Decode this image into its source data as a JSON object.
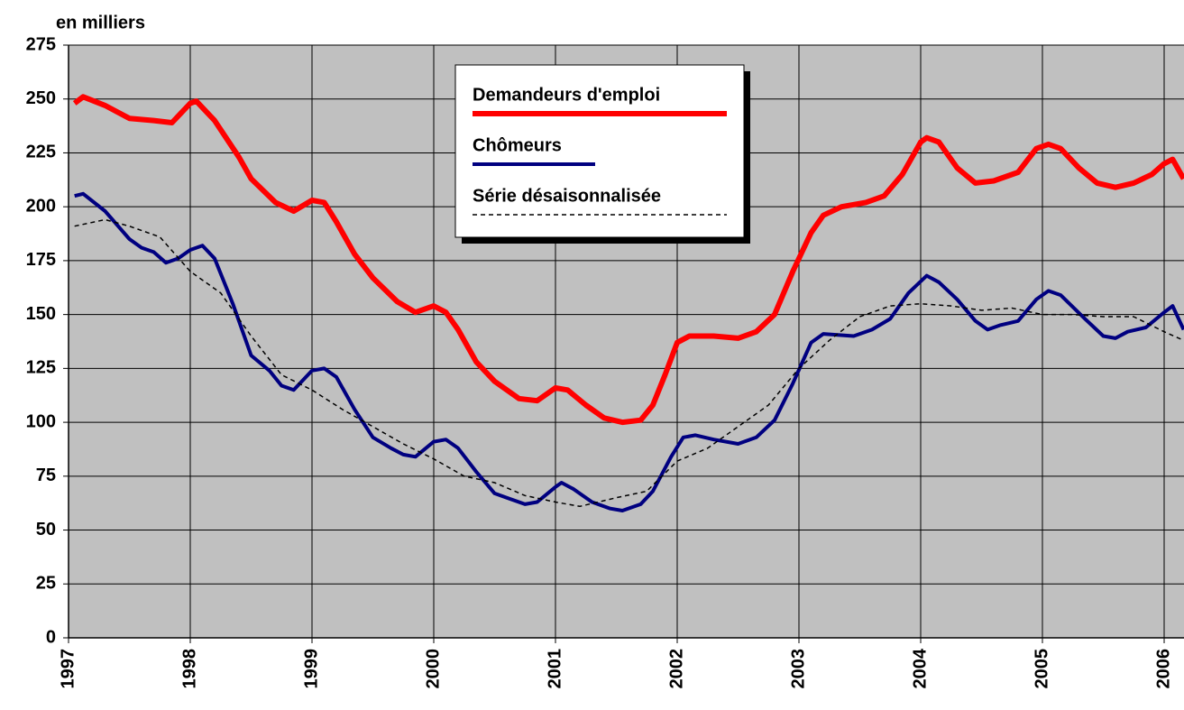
{
  "chart_data": {
    "type": "line",
    "ylabel": "en milliers",
    "xlim": [
      1997,
      2006.163
    ],
    "xticks": [
      1997,
      1998,
      1999,
      2000,
      2001,
      2002,
      2003,
      2004,
      2005,
      2006
    ],
    "ylim": [
      0,
      275
    ],
    "yticks": [
      0,
      25,
      50,
      75,
      100,
      125,
      150,
      175,
      200,
      225,
      250,
      275
    ],
    "grid": true,
    "legend": "top-center",
    "series": [
      {
        "name": "Demandeurs d'emploi",
        "color": "#ff0000",
        "dash": false,
        "width": 6,
        "x": [
          1997.05,
          1997.12,
          1997.3,
          1997.5,
          1997.7,
          1997.85,
          1998.0,
          1998.05,
          1998.2,
          1998.4,
          1998.5,
          1998.7,
          1998.85,
          1999.0,
          1999.1,
          1999.2,
          1999.35,
          1999.5,
          1999.7,
          1999.85,
          2000.0,
          2000.1,
          2000.2,
          2000.35,
          2000.5,
          2000.7,
          2000.85,
          2001.0,
          2001.1,
          2001.25,
          2001.4,
          2001.55,
          2001.7,
          2001.8,
          2001.9,
          2002.0,
          2002.1,
          2002.3,
          2002.5,
          2002.65,
          2002.8,
          2002.95,
          2003.1,
          2003.2,
          2003.35,
          2003.55,
          2003.7,
          2003.85,
          2004.0,
          2004.05,
          2004.15,
          2004.3,
          2004.45,
          2004.6,
          2004.8,
          2004.95,
          2005.05,
          2005.15,
          2005.3,
          2005.45,
          2005.6,
          2005.75,
          2005.9,
          2006.0,
          2006.07,
          2006.16
        ],
        "values": [
          248,
          251,
          247,
          241,
          240,
          239,
          248,
          249,
          240,
          223,
          213,
          202,
          198,
          203,
          202,
          193,
          178,
          167,
          156,
          151,
          154,
          151,
          143,
          128,
          119,
          111,
          110,
          116,
          115,
          108,
          102,
          100,
          101,
          108,
          122,
          137,
          140,
          140,
          139,
          142,
          150,
          170,
          188,
          196,
          200,
          202,
          205,
          215,
          230,
          232,
          230,
          218,
          211,
          212,
          216,
          227,
          229,
          227,
          218,
          211,
          209,
          211,
          215,
          220,
          222,
          213
        ]
      },
      {
        "name": "Chômeurs",
        "color": "#000080",
        "dash": false,
        "width": 4,
        "x": [
          1997.05,
          1997.12,
          1997.3,
          1997.5,
          1997.6,
          1997.7,
          1997.8,
          1997.9,
          1998.0,
          1998.1,
          1998.2,
          1998.35,
          1998.5,
          1998.65,
          1998.75,
          1998.85,
          1999.0,
          1999.1,
          1999.2,
          1999.35,
          1999.5,
          1999.65,
          1999.75,
          1999.85,
          2000.0,
          2000.1,
          2000.2,
          2000.35,
          2000.5,
          2000.6,
          2000.75,
          2000.85,
          2001.0,
          2001.05,
          2001.15,
          2001.3,
          2001.45,
          2001.55,
          2001.7,
          2001.8,
          2001.95,
          2002.05,
          2002.15,
          2002.3,
          2002.5,
          2002.65,
          2002.8,
          2002.95,
          2003.1,
          2003.2,
          2003.45,
          2003.6,
          2003.75,
          2003.9,
          2004.05,
          2004.15,
          2004.3,
          2004.45,
          2004.55,
          2004.65,
          2004.8,
          2004.95,
          2005.05,
          2005.15,
          2005.35,
          2005.5,
          2005.6,
          2005.7,
          2005.85,
          2006.0,
          2006.07,
          2006.16
        ],
        "values": [
          205,
          206,
          198,
          185,
          181,
          179,
          174,
          176,
          180,
          182,
          176,
          155,
          131,
          124,
          117,
          115,
          124,
          125,
          121,
          106,
          93,
          88,
          85,
          84,
          91,
          92,
          88,
          77,
          67,
          65,
          62,
          63,
          70,
          72,
          69,
          63,
          60,
          59,
          62,
          68,
          84,
          93,
          94,
          92,
          90,
          93,
          101,
          118,
          137,
          141,
          140,
          143,
          148,
          160,
          168,
          165,
          157,
          147,
          143,
          145,
          147,
          157,
          161,
          159,
          148,
          140,
          139,
          142,
          144,
          151,
          154,
          143
        ]
      },
      {
        "name": "Série désaisonnalisée",
        "color": "#000000",
        "dash": true,
        "width": 1.5,
        "x": [
          1997.05,
          1997.3,
          1997.5,
          1997.75,
          1998.0,
          1998.25,
          1998.5,
          1998.75,
          1999.0,
          1999.25,
          1999.5,
          1999.75,
          2000.0,
          2000.25,
          2000.5,
          2000.75,
          2001.0,
          2001.2,
          2001.5,
          2001.75,
          2002.0,
          2002.25,
          2002.5,
          2002.75,
          2003.0,
          2003.25,
          2003.5,
          2003.75,
          2004.0,
          2004.25,
          2004.5,
          2004.75,
          2005.0,
          2005.25,
          2005.5,
          2005.75,
          2006.0,
          2006.16
        ],
        "values": [
          191,
          194,
          191,
          186,
          170,
          160,
          140,
          122,
          115,
          106,
          98,
          90,
          83,
          75,
          72,
          66,
          63,
          61,
          65,
          68,
          82,
          88,
          98,
          108,
          125,
          138,
          149,
          154,
          155,
          154,
          152,
          153,
          150,
          150,
          149,
          149,
          142,
          138
        ]
      }
    ]
  }
}
